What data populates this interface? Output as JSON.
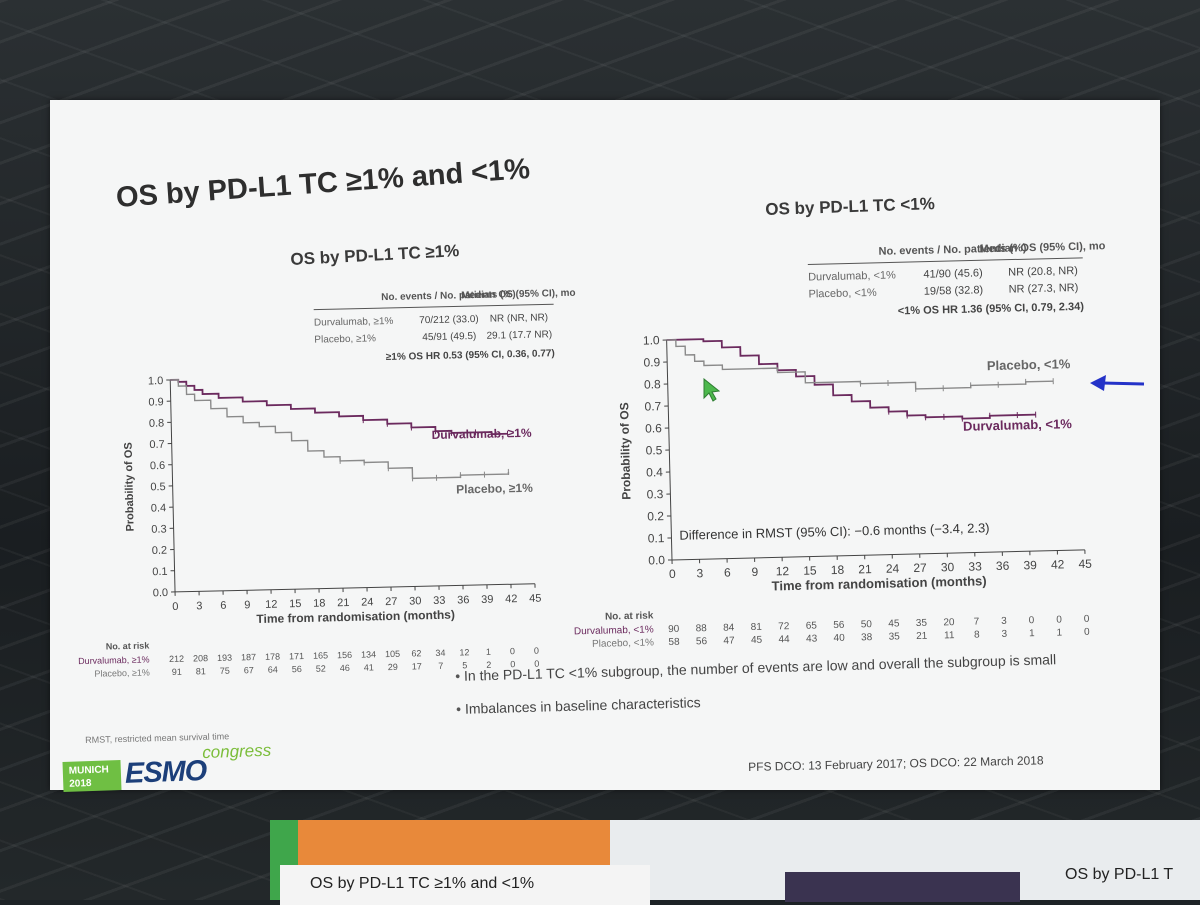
{
  "slide": {
    "title": "OS by PD-L1 TC ≥1% and <1%",
    "bullets": [
      "In the PD-L1 TC <1% subgroup, the number of events are low and overall the subgroup is small",
      "Imbalances in baseline characteristics"
    ],
    "footnote_left": "RMST, restricted mean survival time",
    "footnote_right": "PFS DCO: 13 February 2017; OS DCO: 22 March 2018",
    "logo": {
      "city": "MUNICH",
      "year": "2018",
      "word": "ESMO",
      "sub": "congress"
    },
    "colors": {
      "durvalumab": "#6b2a5e",
      "placebo": "#8a8a8a",
      "arrow": "#2432c8",
      "cursor": "#4cb84c"
    }
  },
  "background": {
    "bottom_left_title": "OS by PD-L1 TC ≥1% and <1%",
    "bottom_right_title": "OS by PD-L1 T"
  },
  "chart_data": [
    {
      "type": "line",
      "title": "OS by PD-L1 TC ≥1%",
      "xlabel": "Time from randomisation (months)",
      "ylabel": "Probability of OS",
      "xlim": [
        0,
        45
      ],
      "ylim": [
        0,
        1.0
      ],
      "x_ticks": [
        0,
        3,
        6,
        9,
        12,
        15,
        18,
        21,
        24,
        27,
        30,
        33,
        36,
        39,
        42,
        45
      ],
      "y_ticks": [
        "0.0",
        "0.1",
        "0.2",
        "0.3",
        "0.4",
        "0.5",
        "0.6",
        "0.7",
        "0.8",
        "0.9",
        "1.0"
      ],
      "table": {
        "headers": [
          "No. events / No. patients (%)",
          "Median OS (95% CI), mo"
        ],
        "rows": [
          {
            "label": "Durvalumab, ≥1%",
            "events": "70/212 (33.0)",
            "median": "NR (NR, NR)"
          },
          {
            "label": "Placebo, ≥1%",
            "events": "45/91 (49.5)",
            "median": "29.1 (17.7 NR)"
          }
        ],
        "hr": "≥1% OS HR 0.53 (95% CI, 0.36, 0.77)"
      },
      "series": [
        {
          "name": "Durvalumab, ≥1%",
          "x": [
            0,
            1,
            2,
            3,
            4,
            6,
            9,
            12,
            15,
            18,
            21,
            24,
            27,
            30,
            33,
            35,
            38,
            40,
            42
          ],
          "y": [
            1.0,
            0.99,
            0.97,
            0.95,
            0.93,
            0.91,
            0.89,
            0.87,
            0.85,
            0.83,
            0.81,
            0.79,
            0.77,
            0.75,
            0.73,
            0.72,
            0.72,
            0.71,
            0.71
          ]
        },
        {
          "name": "Placebo, ≥1%",
          "x": [
            0,
            1,
            2,
            3,
            5,
            7,
            9,
            11,
            13,
            15,
            17,
            19,
            21,
            24,
            27,
            30,
            33,
            36,
            39,
            42
          ],
          "y": [
            1.0,
            0.97,
            0.93,
            0.9,
            0.86,
            0.82,
            0.79,
            0.77,
            0.74,
            0.7,
            0.65,
            0.62,
            0.6,
            0.59,
            0.56,
            0.51,
            0.51,
            0.52,
            0.52,
            0.53
          ]
        }
      ],
      "series_labels": [
        "Durvalumab, ≥1%",
        "Placebo, ≥1%"
      ],
      "risk_table": {
        "header": "No. at risk",
        "rows": [
          {
            "label": "Durvalumab, ≥1%",
            "values": [
              "212",
              "208",
              "193",
              "187",
              "178",
              "171",
              "165",
              "156",
              "134",
              "105",
              "62",
              "34",
              "12",
              "1",
              "0",
              "0"
            ]
          },
          {
            "label": "Placebo, ≥1%",
            "values": [
              "91",
              "81",
              "75",
              "67",
              "64",
              "56",
              "52",
              "46",
              "41",
              "29",
              "17",
              "7",
              "5",
              "2",
              "0",
              "0"
            ]
          }
        ]
      }
    },
    {
      "type": "line",
      "title": "OS by PD-L1 TC <1%",
      "xlabel": "Time from randomisation (months)",
      "ylabel": "Probability of OS",
      "xlim": [
        0,
        45
      ],
      "ylim": [
        0,
        1.0
      ],
      "x_ticks": [
        0,
        3,
        6,
        9,
        12,
        15,
        18,
        21,
        24,
        27,
        30,
        33,
        36,
        39,
        42,
        45
      ],
      "y_ticks": [
        "0.0",
        "0.1",
        "0.2",
        "0.3",
        "0.4",
        "0.5",
        "0.6",
        "0.7",
        "0.8",
        "0.9",
        "1.0"
      ],
      "table": {
        "headers": [
          "No. events / No. patients (%)",
          "Median OS (95% CI), mo"
        ],
        "rows": [
          {
            "label": "Durvalumab, <1%",
            "events": "41/90 (45.6)",
            "median": "NR (20.8, NR)"
          },
          {
            "label": "Placebo, <1%",
            "events": "19/58 (32.8)",
            "median": "NR (27.3, NR)"
          }
        ],
        "hr": "<1% OS HR 1.36 (95% CI, 0.79, 2.34)"
      },
      "annotation": "Difference in RMST (95% CI): −0.6 months (−3.4, 2.3)",
      "series": [
        {
          "name": "Durvalumab, <1%",
          "x": [
            0,
            2,
            4,
            6,
            8,
            10,
            12,
            14,
            16,
            18,
            20,
            22,
            24,
            26,
            28,
            30,
            32,
            35,
            38,
            40
          ],
          "y": [
            1.0,
            1.0,
            0.99,
            0.96,
            0.92,
            0.88,
            0.85,
            0.82,
            0.78,
            0.73,
            0.7,
            0.67,
            0.65,
            0.63,
            0.62,
            0.62,
            0.61,
            0.62,
            0.62,
            0.62
          ]
        },
        {
          "name": "Placebo, <1%",
          "x": [
            0,
            1,
            2,
            3,
            4,
            6,
            9,
            12,
            15,
            18,
            21,
            24,
            27,
            30,
            33,
            36,
            39,
            42
          ],
          "y": [
            1.0,
            0.97,
            0.93,
            0.9,
            0.88,
            0.86,
            0.86,
            0.84,
            0.79,
            0.79,
            0.78,
            0.78,
            0.75,
            0.75,
            0.76,
            0.76,
            0.77,
            0.77
          ]
        }
      ],
      "series_labels": [
        "Durvalumab, <1%",
        "Placebo, <1%"
      ],
      "risk_table": {
        "header": "No. at risk",
        "rows": [
          {
            "label": "Durvalumab, <1%",
            "values": [
              "90",
              "88",
              "84",
              "81",
              "72",
              "65",
              "56",
              "50",
              "45",
              "35",
              "20",
              "7",
              "3",
              "0",
              "0",
              "0"
            ]
          },
          {
            "label": "Placebo, <1%",
            "values": [
              "58",
              "56",
              "47",
              "45",
              "44",
              "43",
              "40",
              "38",
              "35",
              "21",
              "11",
              "8",
              "3",
              "1",
              "1",
              "0"
            ]
          }
        ]
      }
    }
  ]
}
